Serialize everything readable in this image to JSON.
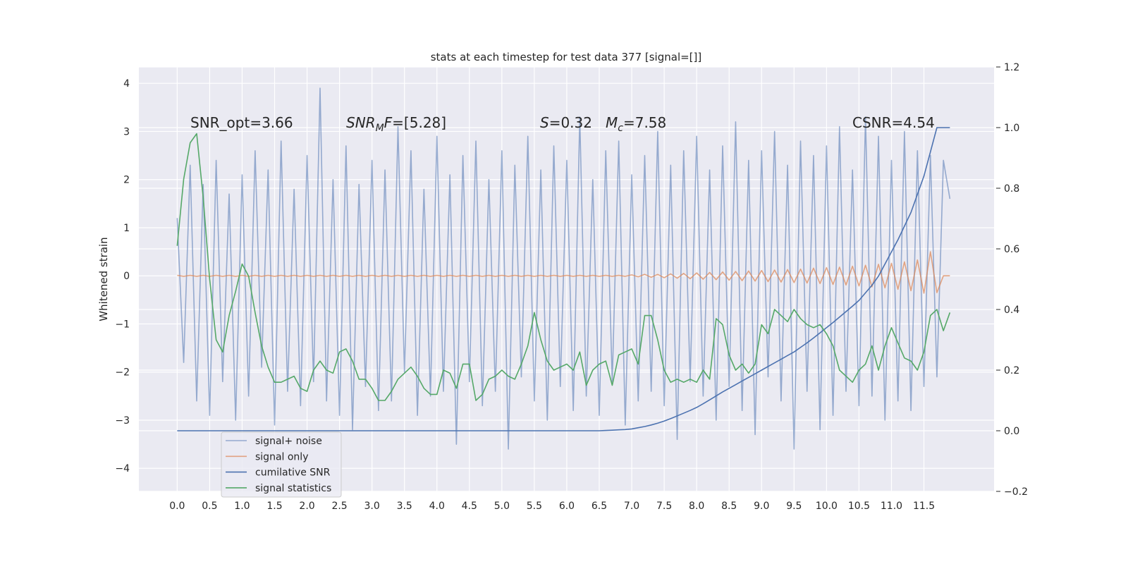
{
  "chart_data": {
    "type": "line",
    "title": "stats at each timestep for test data 377 [signal=[]]",
    "ylabel": "Whitened strain",
    "annotations": [
      [
        "SNR_opt=3.66"
      ],
      [
        "SNR",
        "M",
        "F",
        "=[5.28]"
      ],
      [
        "S",
        "=0.32"
      ],
      [
        "M",
        "c",
        "=7.58"
      ],
      [
        "CSNR=4.54"
      ]
    ],
    "xlim": [
      -0.59,
      12.58
    ],
    "ylim": [
      -4.48,
      4.34
    ],
    "y2lim": [
      -0.2,
      1.2
    ],
    "xticks": [
      {
        "value": 0,
        "label": "0.0"
      },
      0.5,
      {
        "value": 1,
        "label": "1.0"
      },
      1.5,
      {
        "value": 2,
        "label": "2.0"
      },
      2.5,
      {
        "value": 3,
        "label": "3.0"
      },
      3.5,
      {
        "value": 4,
        "label": "4.0"
      },
      4.5,
      {
        "value": 5,
        "label": "5.0"
      },
      5.5,
      {
        "value": 6,
        "label": "6.0"
      },
      6.5,
      {
        "value": 7,
        "label": "7.0"
      },
      7.5,
      {
        "value": 8,
        "label": "8.0"
      },
      8.5,
      {
        "value": 9,
        "label": "9.0"
      },
      9.5,
      {
        "value": 10,
        "label": "10.0"
      },
      10.5,
      {
        "value": 11,
        "label": "11.0"
      },
      11.5
    ],
    "yticks": [
      {
        "value": -4,
        "label": "−4"
      },
      {
        "value": -3,
        "label": "−3"
      },
      {
        "value": -2,
        "label": "−2"
      },
      {
        "value": -1,
        "label": "−1"
      },
      0,
      1,
      2,
      3,
      4
    ],
    "y2ticks": [
      {
        "value": -0.2,
        "label": "−0.2"
      },
      {
        "value": 0,
        "label": "0.0"
      },
      0.2,
      0.4,
      0.6,
      0.8,
      {
        "value": 1,
        "label": "1.0"
      },
      1.2
    ],
    "grid": true,
    "x": [
      0,
      0.1,
      0.2,
      0.3,
      0.4,
      0.5,
      0.6,
      0.7,
      0.8,
      0.9,
      1,
      1.1,
      1.2,
      1.3,
      1.4,
      1.5,
      1.6,
      1.7,
      1.8,
      1.9,
      2,
      2.1,
      2.2,
      2.3,
      2.4,
      2.5,
      2.6,
      2.7,
      2.8,
      2.9,
      3,
      3.1,
      3.2,
      3.3,
      3.4,
      3.5,
      3.6,
      3.7,
      3.8,
      3.9,
      4,
      4.1,
      4.2,
      4.3,
      4.4,
      4.5,
      4.6,
      4.7,
      4.8,
      4.9,
      5,
      5.1,
      5.2,
      5.3,
      5.4,
      5.5,
      5.6,
      5.7,
      5.8,
      5.9,
      6,
      6.1,
      6.2,
      6.3,
      6.4,
      6.5,
      6.6,
      6.7,
      6.8,
      6.9,
      7,
      7.1,
      7.2,
      7.3,
      7.4,
      7.5,
      7.6,
      7.7,
      7.8,
      7.9,
      8,
      8.1,
      8.2,
      8.3,
      8.4,
      8.5,
      8.6,
      8.7,
      8.8,
      8.9,
      9,
      9.1,
      9.2,
      9.3,
      9.4,
      9.5,
      9.6,
      9.7,
      9.8,
      9.9,
      10,
      10.1,
      10.2,
      10.3,
      10.4,
      10.5,
      10.6,
      10.7,
      10.8,
      10.9,
      11,
      11.1,
      11.2,
      11.3,
      11.4,
      11.5,
      11.6,
      11.7,
      11.8,
      11.9
    ],
    "series": [
      {
        "name": "signal+ noise",
        "color": "#4c72b0",
        "opacity": 0.55,
        "values": [
          1.2,
          -1.8,
          2.3,
          -2.6,
          1.9,
          -2.9,
          2.4,
          -2.2,
          1.7,
          -3.0,
          2.1,
          -2.5,
          2.6,
          -1.9,
          2.2,
          -3.1,
          2.8,
          -2.4,
          1.8,
          -2.7,
          2.5,
          -2.2,
          3.9,
          -2.6,
          2.0,
          -2.9,
          2.7,
          -3.2,
          1.9,
          -2.3,
          2.4,
          -2.8,
          2.2,
          -2.6,
          3.1,
          -2.0,
          2.6,
          -2.9,
          1.8,
          -2.5,
          2.9,
          -2.4,
          2.1,
          -3.5,
          2.5,
          -2.2,
          2.8,
          -2.7,
          2.0,
          -2.4,
          2.6,
          -3.6,
          2.3,
          -2.1,
          2.9,
          -2.6,
          2.2,
          -3.0,
          2.7,
          -2.3,
          2.4,
          -2.8,
          3.3,
          -2.5,
          2.0,
          -2.9,
          2.6,
          -2.2,
          2.8,
          -3.1,
          2.1,
          -2.6,
          2.5,
          -2.4,
          3.0,
          -2.7,
          2.3,
          -3.4,
          2.6,
          -2.2,
          2.9,
          -2.5,
          2.2,
          -3.0,
          2.7,
          -2.3,
          3.2,
          -2.8,
          2.4,
          -3.3,
          2.6,
          -2.1,
          3.0,
          -2.6,
          2.3,
          -3.6,
          2.8,
          -2.4,
          2.5,
          -3.2,
          2.7,
          -2.9,
          3.1,
          -2.4,
          2.2,
          -2.7,
          3.3,
          -2.5,
          2.9,
          -3.0,
          2.4,
          -2.6,
          3.0,
          -2.8,
          2.6,
          -2.3,
          2.5,
          -2.1,
          2.4,
          1.6
        ]
      },
      {
        "name": "signal only",
        "color": "#dd8452",
        "opacity": 0.7,
        "values": [
          0.01,
          -0.01,
          0.01,
          -0.01,
          0.01,
          -0.01,
          0.01,
          -0.01,
          0.01,
          -0.01,
          0.01,
          -0.01,
          0.01,
          -0.01,
          0.01,
          -0.01,
          0.01,
          -0.01,
          0.01,
          -0.01,
          0.01,
          -0.01,
          0.01,
          -0.01,
          0.01,
          -0.01,
          0.01,
          -0.01,
          0.01,
          -0.01,
          0.01,
          -0.01,
          0.01,
          -0.01,
          0.01,
          -0.01,
          0.01,
          -0.01,
          0.01,
          -0.01,
          0.01,
          -0.01,
          0.01,
          -0.01,
          0.01,
          -0.01,
          0.01,
          -0.01,
          0.01,
          -0.01,
          0.01,
          -0.01,
          0.01,
          -0.01,
          0.01,
          -0.01,
          0.01,
          -0.01,
          0.01,
          -0.01,
          0.01,
          -0.01,
          0.01,
          -0.01,
          0.01,
          -0.01,
          0.01,
          -0.01,
          0.01,
          -0.01,
          0.02,
          -0.02,
          0.03,
          -0.03,
          0.03,
          -0.04,
          0.04,
          -0.05,
          0.05,
          -0.06,
          0.06,
          -0.07,
          0.07,
          -0.08,
          0.08,
          -0.09,
          0.09,
          -0.1,
          0.1,
          -0.11,
          0.11,
          -0.12,
          0.12,
          -0.13,
          0.13,
          -0.14,
          0.14,
          -0.15,
          0.16,
          -0.16,
          0.17,
          -0.18,
          0.18,
          -0.19,
          0.2,
          -0.21,
          0.22,
          -0.23,
          0.24,
          -0.25,
          0.26,
          -0.28,
          0.29,
          -0.31,
          0.33,
          -0.36,
          0.5,
          -0.35,
          0,
          0
        ]
      },
      {
        "name": "cumilative SNR",
        "color": "#4c72b0",
        "axis": "y2",
        "values": [
          0,
          0,
          0,
          0,
          0,
          0,
          0,
          0,
          0,
          0,
          0,
          0,
          0,
          0,
          0,
          0,
          0,
          0,
          0,
          0,
          0,
          0,
          0,
          0,
          0,
          0,
          0,
          0,
          0,
          0,
          0,
          0,
          0,
          0,
          0,
          0,
          0,
          0,
          0,
          0,
          0,
          0,
          0,
          0,
          0,
          0,
          0,
          0,
          0,
          0,
          0,
          0,
          0,
          0,
          0,
          0,
          0,
          0,
          0,
          0,
          0,
          0,
          0,
          0,
          0,
          0,
          0.001,
          0.002,
          0.003,
          0.004,
          0.006,
          0.01,
          0.014,
          0.019,
          0.025,
          0.032,
          0.04,
          0.049,
          0.058,
          0.067,
          0.077,
          0.089,
          0.102,
          0.115,
          0.128,
          0.14,
          0.152,
          0.164,
          0.176,
          0.188,
          0.2,
          0.212,
          0.224,
          0.236,
          0.248,
          0.26,
          0.275,
          0.29,
          0.306,
          0.323,
          0.34,
          0.357,
          0.375,
          0.393,
          0.411,
          0.43,
          0.455,
          0.48,
          0.51,
          0.55,
          0.59,
          0.63,
          0.675,
          0.72,
          0.78,
          0.84,
          0.92,
          1,
          1,
          1
        ]
      },
      {
        "name": "signal statistics",
        "color": "#55a868",
        "axis": "y2",
        "values": [
          0.61,
          0.83,
          0.95,
          0.98,
          0.77,
          0.5,
          0.3,
          0.26,
          0.38,
          0.46,
          0.55,
          0.51,
          0.39,
          0.28,
          0.21,
          0.16,
          0.16,
          0.17,
          0.18,
          0.14,
          0.13,
          0.2,
          0.23,
          0.2,
          0.19,
          0.26,
          0.27,
          0.23,
          0.17,
          0.17,
          0.14,
          0.1,
          0.1,
          0.13,
          0.17,
          0.19,
          0.21,
          0.18,
          0.14,
          0.12,
          0.12,
          0.2,
          0.19,
          0.14,
          0.22,
          0.22,
          0.1,
          0.12,
          0.17,
          0.18,
          0.2,
          0.18,
          0.17,
          0.22,
          0.28,
          0.39,
          0.3,
          0.23,
          0.2,
          0.21,
          0.22,
          0.2,
          0.26,
          0.15,
          0.2,
          0.22,
          0.23,
          0.15,
          0.25,
          0.26,
          0.27,
          0.22,
          0.38,
          0.38,
          0.3,
          0.2,
          0.16,
          0.17,
          0.16,
          0.17,
          0.16,
          0.2,
          0.17,
          0.37,
          0.35,
          0.25,
          0.2,
          0.22,
          0.19,
          0.22,
          0.35,
          0.32,
          0.4,
          0.38,
          0.36,
          0.4,
          0.37,
          0.35,
          0.34,
          0.35,
          0.32,
          0.28,
          0.2,
          0.18,
          0.16,
          0.2,
          0.22,
          0.28,
          0.2,
          0.28,
          0.34,
          0.29,
          0.24,
          0.23,
          0.2,
          0.26,
          0.38,
          0.4,
          0.33,
          0.39
        ]
      }
    ]
  }
}
